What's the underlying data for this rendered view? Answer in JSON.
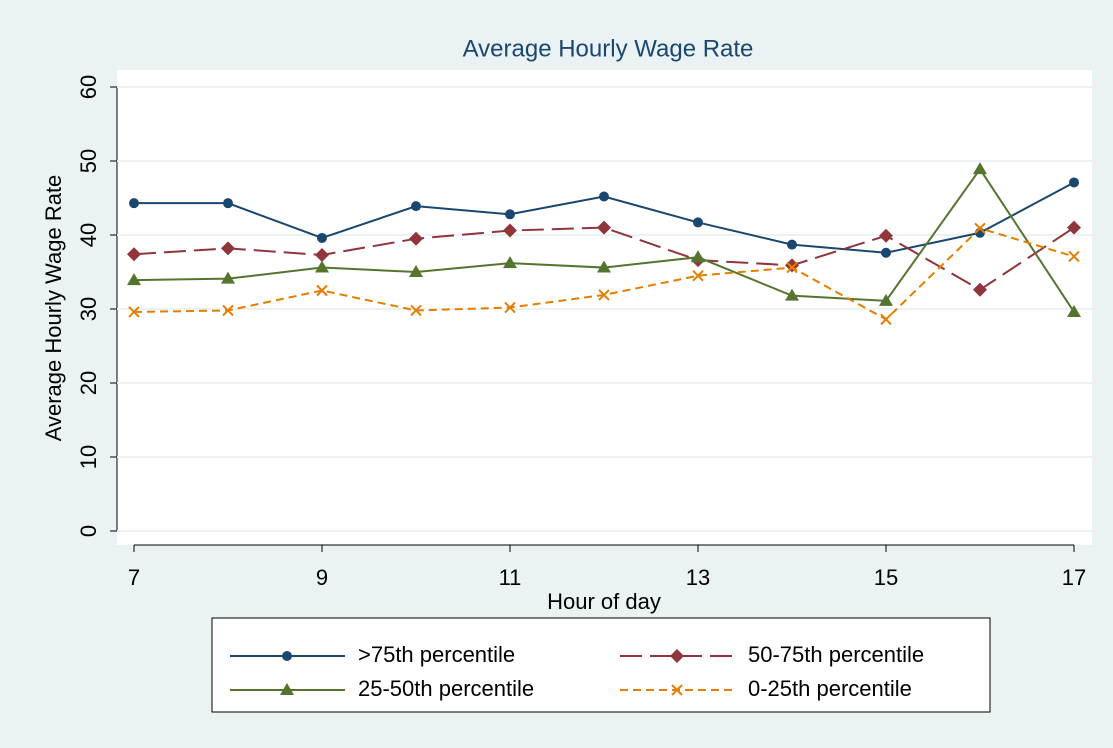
{
  "chart_data": {
    "type": "line",
    "title": "Average Hourly Wage Rate",
    "x_label": "Hour of day",
    "y_label": "Average Hourly Wage Rate",
    "x": [
      7,
      8,
      9,
      10,
      11,
      12,
      13,
      14,
      15,
      16,
      17
    ],
    "xlim": [
      7,
      17
    ],
    "xticks": [
      7,
      9,
      11,
      13,
      15,
      17
    ],
    "ylim": [
      0,
      60
    ],
    "yticks": [
      0,
      10,
      20,
      30,
      40,
      50,
      60
    ],
    "grid": true,
    "legend": "bottom",
    "series": [
      {
        "name": ">75th percentile",
        "color": "#1a476f",
        "marker": "circle",
        "dash": "solid",
        "values": [
          44.3,
          44.3,
          39.6,
          43.9,
          42.8,
          45.2,
          41.7,
          38.7,
          37.6,
          40.3,
          47.1
        ]
      },
      {
        "name": "50-75th percentile",
        "color": "#90353b",
        "marker": "diamond",
        "dash": "long",
        "values": [
          37.4,
          38.2,
          37.3,
          39.5,
          40.6,
          41.0,
          36.6,
          35.9,
          39.9,
          32.6,
          41.0
        ]
      },
      {
        "name": "25-50th percentile",
        "color": "#55752f",
        "marker": "triangle",
        "dash": "solid",
        "values": [
          33.9,
          34.1,
          35.6,
          35.0,
          36.2,
          35.6,
          37.0,
          31.8,
          31.1,
          48.9,
          29.6
        ]
      },
      {
        "name": "0-25th percentile",
        "color": "#e37e00",
        "marker": "x",
        "dash": "short",
        "values": [
          29.6,
          29.8,
          32.5,
          29.8,
          30.2,
          31.9,
          34.5,
          35.6,
          28.6,
          40.9,
          37.1
        ]
      }
    ]
  }
}
